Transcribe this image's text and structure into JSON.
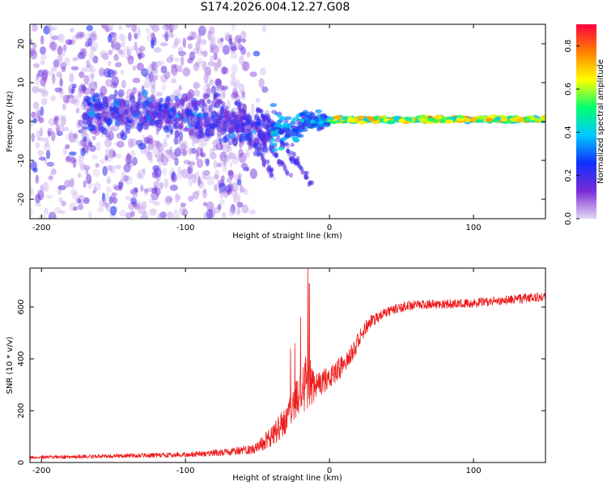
{
  "title": "S174.2026.004.12.27.G08",
  "colors": {
    "snr_line": "#ee1c1c",
    "axis": "#000000",
    "background": "#ffffff"
  },
  "chart_data": [
    {
      "type": "heatmap",
      "name": "spectrogram",
      "xlabel": "Height of straight line (km)",
      "ylabel": "Frequency (Hz)",
      "xlim": [
        -208,
        150
      ],
      "ylim": [
        -25,
        25
      ],
      "xticks": [
        -200,
        -100,
        0,
        100
      ],
      "yticks": [
        -20,
        -10,
        0,
        10,
        20
      ],
      "colorbar": {
        "label": "Normalized spectral amplitude",
        "range": [
          0,
          0.9
        ],
        "ticks": [
          0.0,
          0.2,
          0.4,
          0.6,
          0.8
        ],
        "colormap": [
          "#e3d9f4",
          "#7a2bd6",
          "#1030ff",
          "#00c8ff",
          "#00ff70",
          "#ffff00",
          "#ff8000",
          "#ff0040"
        ]
      },
      "features": [
        {
          "x_range": [
            -208,
            -60
          ],
          "freq_range": [
            -25,
            25
          ],
          "amplitude": 0.15,
          "description": "scattered noise"
        },
        {
          "x_range": [
            -170,
            -40
          ],
          "freq_center": 2,
          "amplitude": 0.35,
          "description": "dense band"
        },
        {
          "x_range": [
            -40,
            0
          ],
          "freq_center": 0,
          "amplitude": 0.45,
          "description": "converging signal"
        },
        {
          "x_range": [
            0,
            150
          ],
          "freq_center": 0,
          "amplitude": 0.7,
          "description": "stable carrier"
        }
      ]
    },
    {
      "type": "line",
      "name": "snr",
      "xlabel": "Height of straight line (km)",
      "ylabel": "SNR (10 * v/v)",
      "xlim": [
        -208,
        150
      ],
      "ylim": [
        0,
        750
      ],
      "xticks": [
        -200,
        -100,
        0,
        100
      ],
      "yticks": [
        0,
        200,
        400,
        600
      ],
      "profile": {
        "x": [
          -208,
          -150,
          -100,
          -70,
          -50,
          -40,
          -30,
          -25,
          -20,
          -17,
          -15,
          -12,
          -10,
          -5,
          0,
          5,
          10,
          15,
          20,
          25,
          30,
          40,
          50,
          60,
          80,
          100,
          120,
          150
        ],
        "y": [
          20,
          25,
          30,
          40,
          60,
          100,
          170,
          230,
          280,
          300,
          320,
          290,
          290,
          310,
          340,
          350,
          380,
          420,
          470,
          520,
          550,
          580,
          600,
          610,
          610,
          615,
          625,
          640
        ],
        "noise": [
          6,
          8,
          10,
          14,
          25,
          40,
          60,
          70,
          80,
          110,
          130,
          70,
          50,
          50,
          50,
          45,
          40,
          40,
          35,
          30,
          25,
          20,
          20,
          18,
          18,
          18,
          18,
          18
        ]
      },
      "spikes": [
        {
          "x": -27,
          "y": 440
        },
        {
          "x": -24,
          "y": 460
        },
        {
          "x": -15,
          "y": 750
        },
        {
          "x": -14,
          "y": 690
        },
        {
          "x": -20,
          "y": 560
        }
      ]
    }
  ]
}
